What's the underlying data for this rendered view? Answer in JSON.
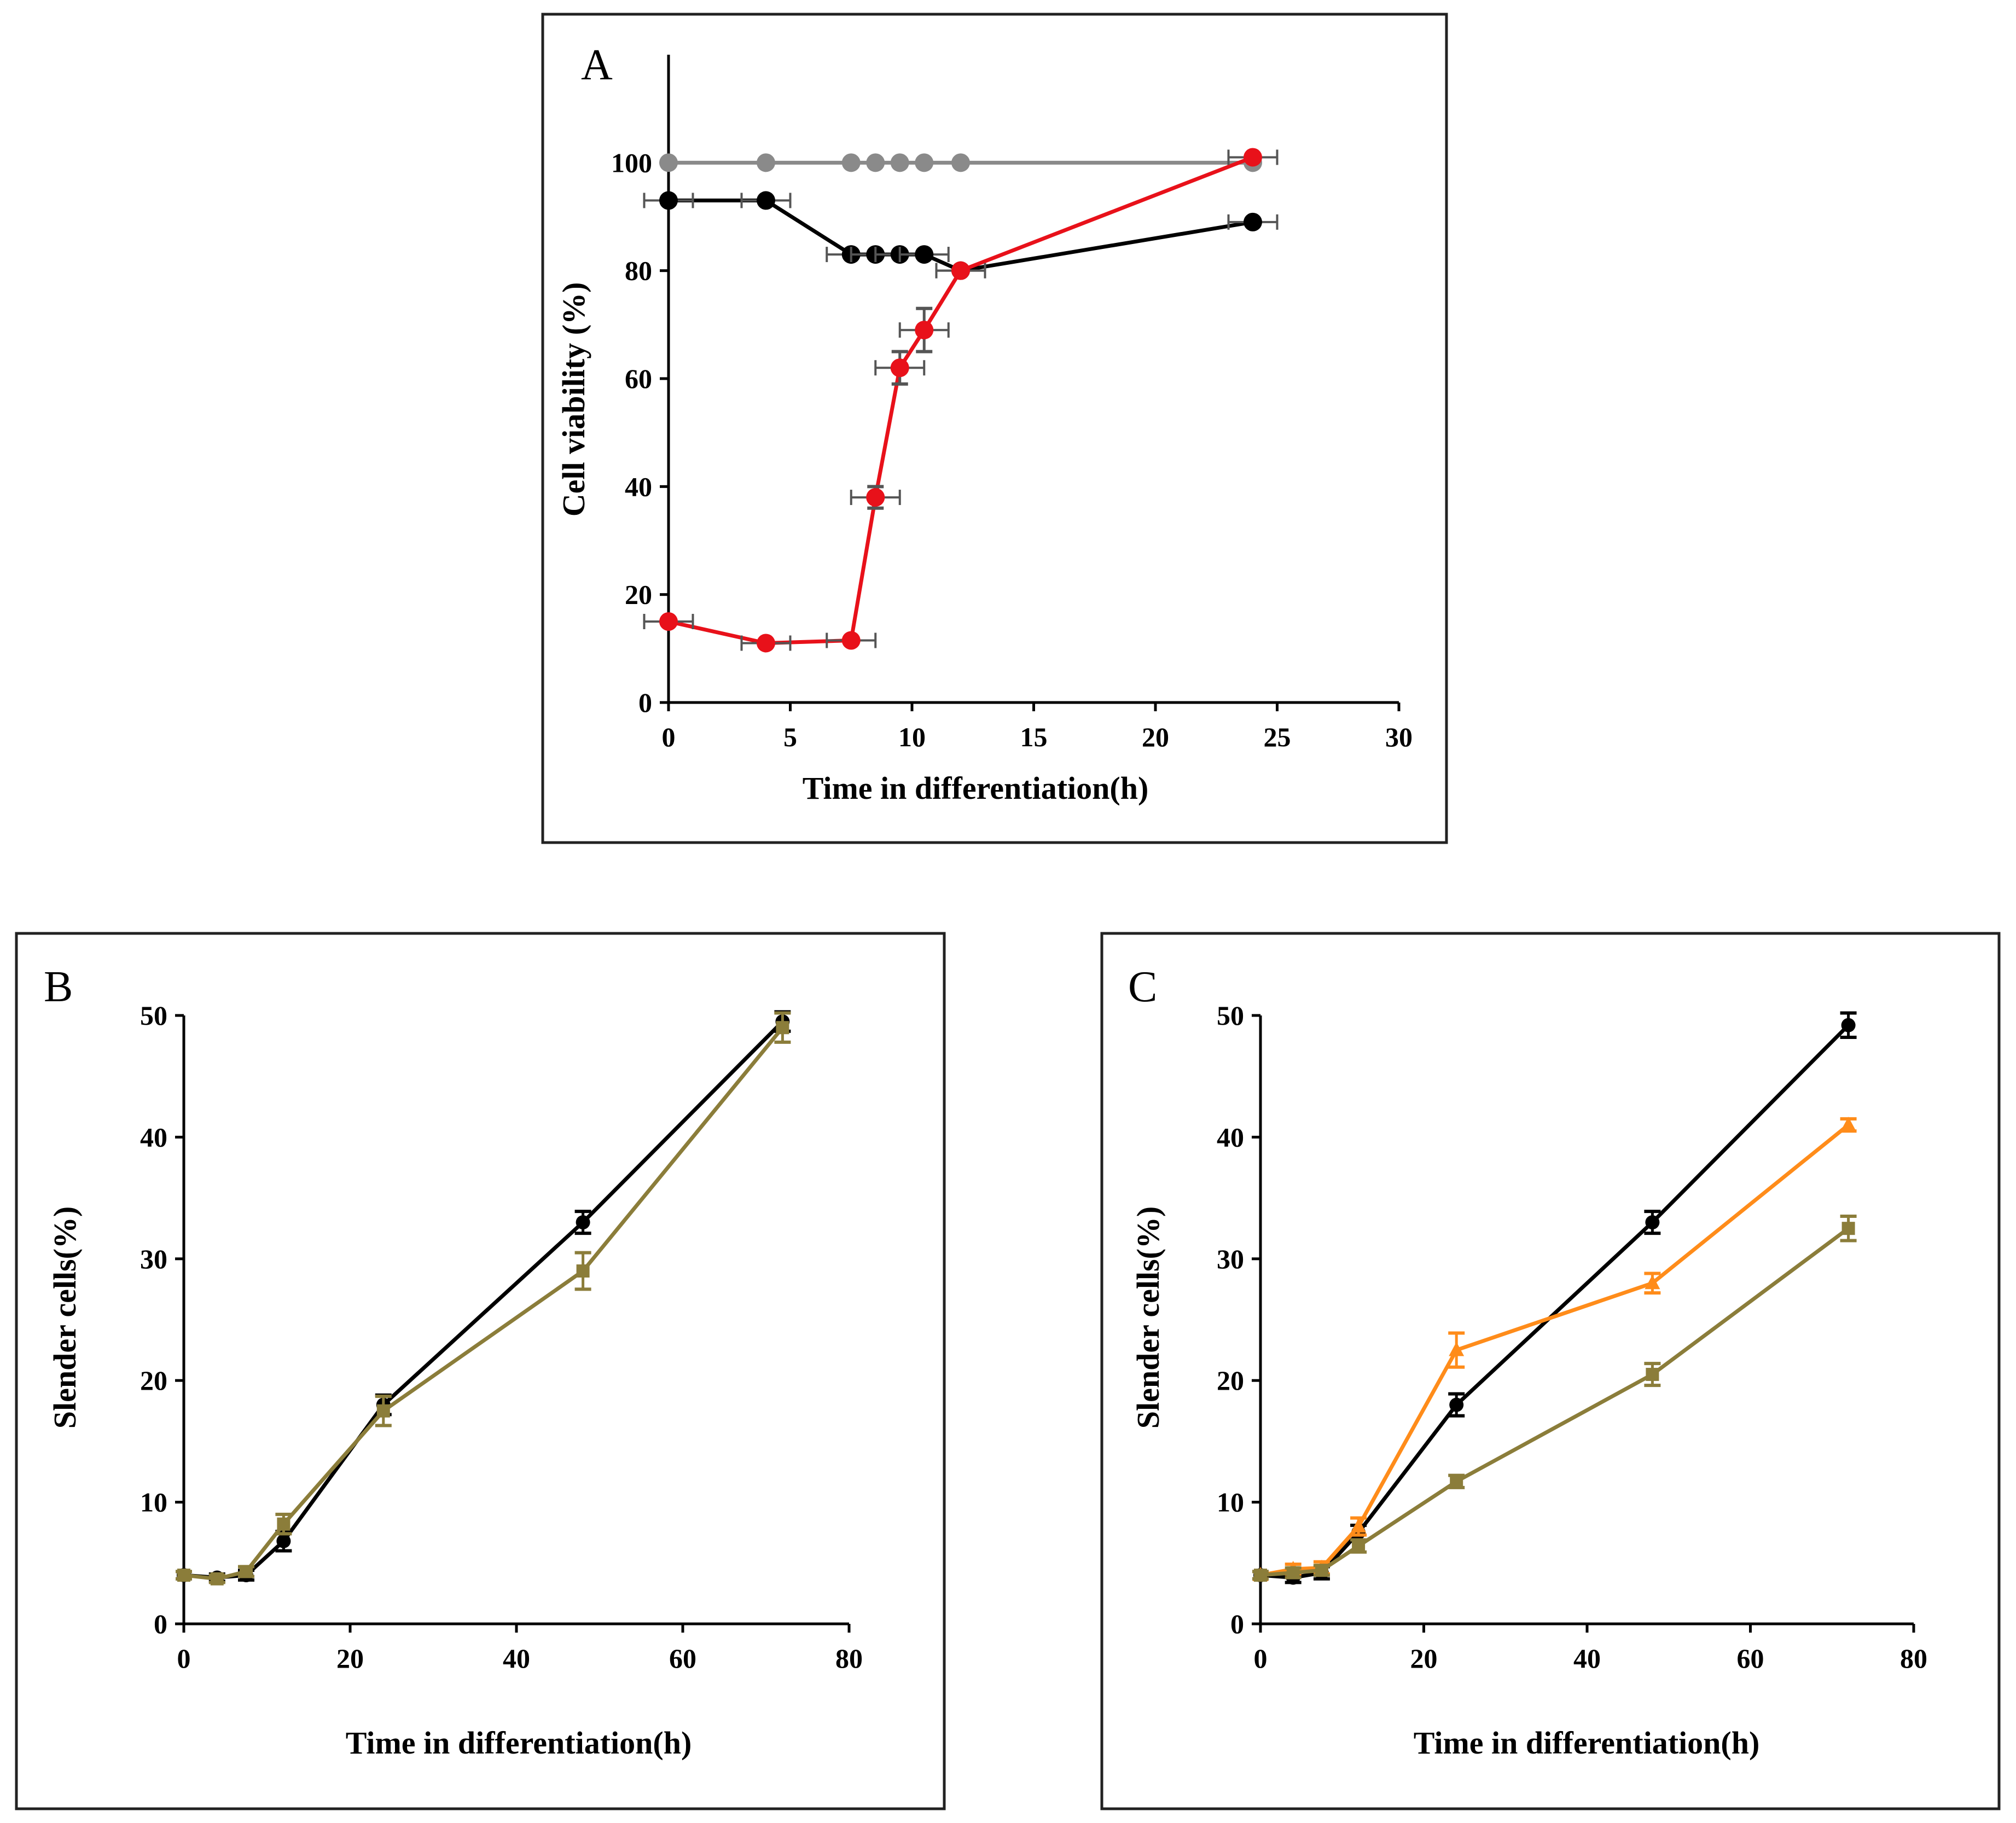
{
  "chart_data": [
    {
      "panel": "A",
      "type": "line",
      "xlabel": "Time in differentiation(h)",
      "ylabel": "Cell viability (%)",
      "xlim": [
        0,
        30
      ],
      "ylim": [
        0,
        120
      ],
      "xticks": [
        0,
        5,
        10,
        15,
        20,
        25,
        30
      ],
      "yticks": [
        0,
        20,
        40,
        60,
        80,
        100
      ],
      "series": [
        {
          "name": "grey",
          "color": "#8a8a8a",
          "marker": "circle",
          "x": [
            0,
            4,
            7.5,
            8.5,
            9.5,
            10.5,
            12,
            24
          ],
          "y": [
            100,
            100,
            100,
            100,
            100,
            100,
            100,
            100
          ],
          "xerr": [
            0,
            0,
            0,
            0,
            0,
            0,
            0,
            0
          ],
          "yerr": [
            0,
            0,
            0,
            0,
            0,
            0,
            0,
            0
          ]
        },
        {
          "name": "black",
          "color": "#000000",
          "marker": "circle",
          "x": [
            0,
            4,
            7.5,
            8.5,
            9.5,
            10.5,
            12,
            24
          ],
          "y": [
            93,
            93,
            83,
            83,
            83,
            83,
            80,
            89
          ],
          "xerr": [
            1,
            1,
            1,
            1,
            1,
            1,
            1,
            1
          ],
          "yerr": [
            0,
            0,
            0,
            0,
            0,
            0,
            0,
            0
          ]
        },
        {
          "name": "red",
          "color": "#e8111a",
          "marker": "circle",
          "x": [
            0,
            4,
            7.5,
            8.5,
            9.5,
            10.5,
            12,
            24
          ],
          "y": [
            15,
            11,
            11.5,
            38,
            62,
            69,
            80,
            101
          ],
          "xerr": [
            1,
            1,
            1,
            1,
            1,
            1,
            1,
            1
          ],
          "yerr": [
            0,
            0,
            0,
            2,
            3,
            4,
            0,
            0
          ]
        }
      ]
    },
    {
      "panel": "B",
      "type": "line",
      "xlabel": "Time in differentiation(h)",
      "ylabel": "Slender cells(%)",
      "xlim": [
        0,
        80
      ],
      "ylim": [
        0,
        50
      ],
      "xticks": [
        0,
        20,
        40,
        60,
        80
      ],
      "yticks": [
        0,
        10,
        20,
        30,
        40,
        50
      ],
      "series": [
        {
          "name": "black",
          "color": "#000000",
          "marker": "circle",
          "x": [
            0,
            4,
            7.5,
            12,
            24,
            48,
            72
          ],
          "y": [
            4,
            3.8,
            4,
            6.8,
            18,
            33,
            49.5
          ],
          "yerr": [
            0.3,
            0.3,
            0.4,
            0.8,
            0.8,
            0.9,
            0.8
          ]
        },
        {
          "name": "olive",
          "color": "#8b7d3a",
          "marker": "square",
          "x": [
            0,
            4,
            7.5,
            12,
            24,
            48,
            72
          ],
          "y": [
            4,
            3.7,
            4.3,
            8.2,
            17.5,
            29,
            49
          ],
          "yerr": [
            0.3,
            0.3,
            0.4,
            0.8,
            1.2,
            1.5,
            1.2
          ]
        }
      ]
    },
    {
      "panel": "C",
      "type": "line",
      "xlabel": "Time in differentiation(h)",
      "ylabel": "Slender cells(%)",
      "xlim": [
        0,
        80
      ],
      "ylim": [
        0,
        50
      ],
      "xticks": [
        0,
        20,
        40,
        60,
        80
      ],
      "yticks": [
        0,
        10,
        20,
        30,
        40,
        50
      ],
      "series": [
        {
          "name": "black",
          "color": "#000000",
          "marker": "circle",
          "x": [
            0,
            4,
            7.5,
            12,
            24,
            48,
            72
          ],
          "y": [
            4,
            3.8,
            4.2,
            7.5,
            18,
            33,
            49.2
          ],
          "yerr": [
            0.3,
            0.4,
            0.5,
            0.6,
            0.9,
            0.9,
            1.0
          ]
        },
        {
          "name": "orange",
          "color": "#ff8c1a",
          "marker": "triangle",
          "x": [
            0,
            4,
            7.5,
            12,
            24,
            48,
            72
          ],
          "y": [
            4,
            4.5,
            4.6,
            8,
            22.5,
            28,
            41
          ],
          "yerr": [
            0.3,
            0.4,
            0.5,
            0.7,
            1.4,
            0.8,
            0.5
          ]
        },
        {
          "name": "olive",
          "color": "#8b7d3a",
          "marker": "square",
          "x": [
            0,
            4,
            7.5,
            12,
            24,
            48,
            72
          ],
          "y": [
            4,
            4.2,
            4.4,
            6.4,
            11.7,
            20.5,
            32.5
          ],
          "yerr": [
            0.3,
            0.4,
            0.4,
            0.5,
            0.5,
            0.9,
            1.0
          ]
        }
      ]
    }
  ]
}
